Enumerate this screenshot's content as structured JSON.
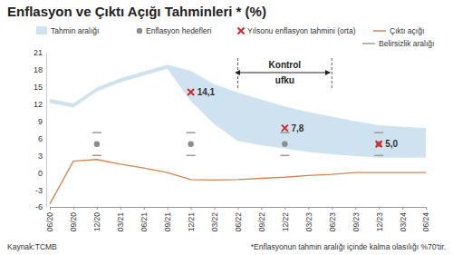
{
  "chart_data": {
    "type": "line",
    "title": "Enflasyon ve Çıktı Açığı Tahminleri * (%)",
    "source": "Kaynak:TCMB",
    "note": "*Enflasyonun tahmin aralığı içinde kalma olasılığı %70'tir.",
    "categories": [
      "06/20",
      "09/20",
      "12/20",
      "03/21",
      "06/21",
      "09/21",
      "12/21",
      "03/22",
      "06/22",
      "09/22",
      "12/22",
      "03/23",
      "06/23",
      "09/23",
      "12/23",
      "03/24",
      "06/24"
    ],
    "ylim": [
      -6,
      21
    ],
    "yticks": [
      -6,
      -3,
      0,
      3,
      6,
      9,
      12,
      15,
      18,
      21
    ],
    "grid": false,
    "annotations": [
      {
        "text": "Kontrol ufku",
        "from": "06/22",
        "to": "06/23"
      }
    ],
    "series": [
      {
        "name": "Tahmin aralığı",
        "type": "area",
        "color": "#cfe2ef",
        "lower": [
          12.2,
          11.4,
          14.2,
          15.8,
          17.0,
          18.2,
          12.5,
          8.5,
          5.5,
          4.8,
          4.2,
          3.6,
          3.2,
          2.9,
          2.6,
          2.6,
          2.6
        ],
        "upper": [
          12.9,
          12.1,
          14.9,
          16.5,
          17.7,
          18.9,
          17.8,
          15.5,
          14.0,
          12.8,
          11.6,
          10.6,
          9.8,
          9.0,
          8.3,
          8.0,
          7.8
        ]
      },
      {
        "name": "Enflasyon hedefleri",
        "type": "scatter",
        "marker": "circle",
        "color": "#8c8c8c",
        "values": [
          null,
          null,
          5,
          null,
          null,
          null,
          5,
          null,
          null,
          null,
          5,
          null,
          null,
          null,
          5,
          null,
          null
        ]
      },
      {
        "name": "Yılsonu enflasyon tahmini (orta)",
        "type": "scatter",
        "marker": "x",
        "color": "#d7262b",
        "data_labels": true,
        "values": [
          null,
          null,
          null,
          null,
          null,
          null,
          14.1,
          null,
          null,
          null,
          7.8,
          null,
          null,
          null,
          5.0,
          null,
          null
        ],
        "value_labels": [
          null,
          null,
          null,
          null,
          null,
          null,
          "14,1",
          null,
          null,
          null,
          "7,8",
          null,
          null,
          null,
          "5,0",
          null,
          null
        ]
      },
      {
        "name": "Çıktı açığı",
        "type": "line",
        "color": "#d9834f",
        "values": [
          -5.5,
          2.0,
          2.3,
          1.5,
          0.8,
          0.0,
          -1.2,
          -1.3,
          -1.2,
          -1.0,
          -0.8,
          -0.5,
          -0.3,
          0.0,
          0.0,
          0.0,
          0.0
        ]
      },
      {
        "name": "Belirsizlik aralığı",
        "type": "range",
        "marker": "dash",
        "color": "#9a9a9a",
        "lower": [
          null,
          null,
          3,
          null,
          null,
          null,
          3,
          null,
          null,
          null,
          3,
          null,
          null,
          null,
          3,
          null,
          null
        ],
        "upper": [
          null,
          null,
          7,
          null,
          null,
          null,
          7,
          null,
          null,
          null,
          7,
          null,
          null,
          null,
          7,
          null,
          null
        ]
      }
    ]
  }
}
